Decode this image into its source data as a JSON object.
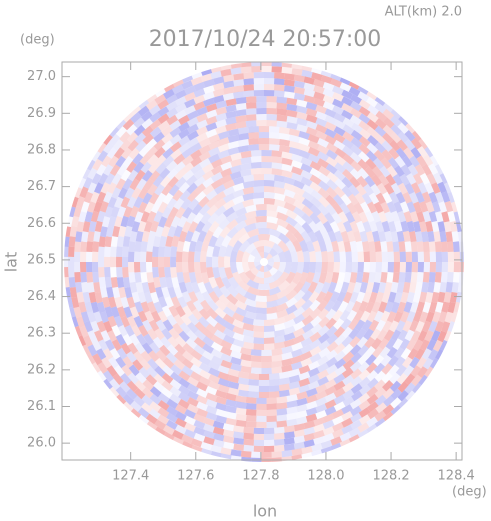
{
  "chart_data": {
    "type": "ppi",
    "title": "2017/10/24 20:57:00",
    "subtitle": "ALT(km) 2.0",
    "y_unit": "(deg)",
    "x_unit": "(deg)",
    "xlabel": "lon",
    "ylabel": "lat",
    "xlim": [
      127.189,
      128.418
    ],
    "ylim": [
      25.954,
      27.04
    ],
    "xticks": [
      127.4,
      127.6,
      127.8,
      {
        "value": 128,
        "label": "128.0"
      },
      128.2,
      128.4
    ],
    "yticks": [
      {
        "value": 26,
        "label": "26.0"
      },
      26.1,
      26.2,
      26.3,
      26.4,
      26.5,
      26.6,
      26.7,
      26.8,
      26.9,
      {
        "value": 27,
        "label": "27.0"
      }
    ],
    "colors": [
      "#f08c8c",
      "#9a9af0"
    ]
  }
}
